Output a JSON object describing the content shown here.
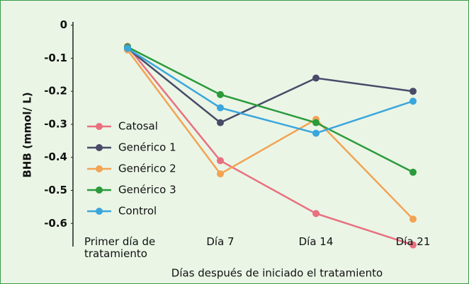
{
  "chart_data": {
    "type": "line",
    "y_label": "BHB (mmol/ L)",
    "x_label": "Días después de iniciado el tratamiento",
    "categories": [
      "Primer día de tratamiento",
      "Día 7",
      "Día 14",
      "Día 21"
    ],
    "series": [
      {
        "name": "Catosal",
        "color": "#e8707f",
        "values": [
          -0.064,
          -0.41,
          -0.57,
          -0.665
        ]
      },
      {
        "name": "Genérico 1",
        "color": "#4a4a68",
        "values": [
          -0.07,
          -0.295,
          -0.16,
          -0.2
        ]
      },
      {
        "name": "Genérico 2",
        "color": "#f2a353",
        "values": [
          -0.075,
          -0.45,
          -0.285,
          -0.587
        ]
      },
      {
        "name": "Genérico 3",
        "color": "#2a9a3a",
        "values": [
          -0.066,
          -0.21,
          -0.295,
          -0.445
        ]
      },
      {
        "name": "Control",
        "color": "#3aa6dc",
        "values": [
          -0.07,
          -0.25,
          -0.327,
          -0.23
        ]
      }
    ],
    "ylim": [
      -0.67,
      0.01
    ],
    "yticks": [
      0,
      -0.1,
      -0.2,
      -0.3,
      -0.4,
      -0.5,
      -0.6
    ],
    "grid": false,
    "legend": "left"
  }
}
